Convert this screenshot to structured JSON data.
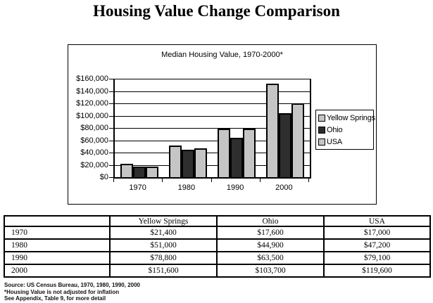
{
  "page": {
    "title": "Housing Value Change Comparison"
  },
  "chart_data": {
    "type": "bar",
    "title": "Median Housing Value, 1970-2000*",
    "categories": [
      "1970",
      "1980",
      "1990",
      "2000"
    ],
    "series": [
      {
        "name": "Yellow Springs",
        "color": "#c5c5c5",
        "values": [
          21400,
          51000,
          78800,
          151600
        ]
      },
      {
        "name": "Ohio",
        "color": "#2e2e2e",
        "values": [
          17600,
          44900,
          63500,
          103700
        ]
      },
      {
        "name": "USA",
        "color": "#c5c5c5",
        "values": [
          17000,
          47200,
          79100,
          119600
        ]
      }
    ],
    "ylim": [
      0,
      160000
    ],
    "ytick_step": 20000,
    "ytick_labels": [
      "$0",
      "$20,000",
      "$40,000",
      "$60,000",
      "$80,000",
      "$100,000",
      "$120,000",
      "$140,000",
      "$160,000"
    ],
    "grid": true,
    "legend_position": "right",
    "legend_labels": [
      "Yellow Springs",
      "Ohio",
      "USA"
    ]
  },
  "table": {
    "columns": [
      "",
      "Yellow Springs",
      "Ohio",
      "USA"
    ],
    "rows": [
      {
        "label": "1970",
        "values": [
          "$21,400",
          "$17,600",
          "$17,000"
        ]
      },
      {
        "label": "1980",
        "values": [
          "$51,000",
          "$44,900",
          "$47,200"
        ]
      },
      {
        "label": "1990",
        "values": [
          "$78,800",
          "$63,500",
          "$79,100"
        ]
      },
      {
        "label": "2000",
        "values": [
          "$151,600",
          "$103,700",
          "$119,600"
        ]
      }
    ]
  },
  "footnotes": [
    "Source: US Census Bureau, 1970, 1980, 1990, 2000",
    "*Housing Value is not adjusted for inflation",
    "See Appendix, Table 9, for more detail"
  ]
}
